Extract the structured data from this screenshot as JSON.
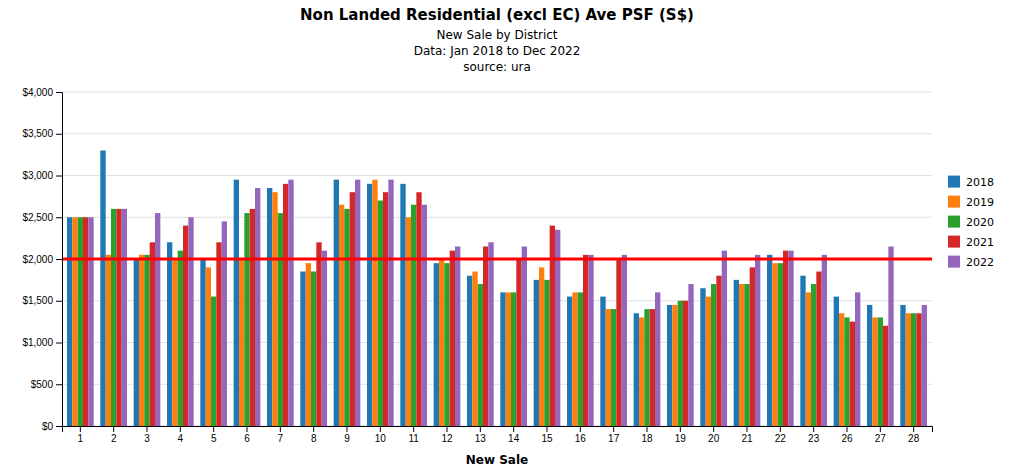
{
  "chart_data": {
    "type": "bar",
    "title": "Non Landed Residential (excl EC) Ave PSF (S$)",
    "subtitle": [
      "New Sale by District",
      "Data: Jan 2018 to Dec 2022",
      "source: ura"
    ],
    "xlabel": "New Sale",
    "categories": [
      1,
      2,
      3,
      4,
      5,
      6,
      7,
      8,
      9,
      10,
      11,
      12,
      13,
      14,
      15,
      16,
      17,
      18,
      19,
      20,
      21,
      22,
      23,
      26,
      27,
      28
    ],
    "series": [
      {
        "name": "2018",
        "values": [
          2500,
          3300,
          2000,
          2200,
          2000,
          2950,
          2850,
          1850,
          2950,
          2900,
          2900,
          1950,
          1800,
          1600,
          1750,
          1550,
          1550,
          1350,
          1450,
          1650,
          1750,
          2050,
          1800,
          1550,
          1450,
          1450
        ]
      },
      {
        "name": "2019",
        "values": [
          2500,
          2050,
          2050,
          2000,
          1900,
          2000,
          2800,
          1950,
          2650,
          2950,
          2500,
          2000,
          1850,
          1600,
          1900,
          1600,
          1400,
          1300,
          1450,
          1550,
          1700,
          1950,
          1600,
          1350,
          1300,
          1350
        ]
      },
      {
        "name": "2020",
        "values": [
          2500,
          2600,
          2050,
          2100,
          1550,
          2550,
          2550,
          1850,
          2600,
          2700,
          2650,
          1950,
          1700,
          1600,
          1750,
          1600,
          1400,
          1400,
          1500,
          1700,
          1700,
          1950,
          1700,
          1300,
          1300,
          1350
        ]
      },
      {
        "name": "2021",
        "values": [
          2500,
          2600,
          2200,
          2400,
          2200,
          2600,
          2900,
          2200,
          2800,
          2800,
          2800,
          2100,
          2150,
          2000,
          2400,
          2050,
          2000,
          1400,
          1500,
          1800,
          1900,
          2100,
          1850,
          1250,
          1200,
          1350
        ]
      },
      {
        "name": "2022",
        "values": [
          2500,
          2600,
          2550,
          2500,
          2450,
          2850,
          2950,
          2100,
          2950,
          2950,
          2650,
          2150,
          2200,
          2150,
          2350,
          2050,
          2050,
          1600,
          1700,
          2100,
          2050,
          2100,
          2050,
          1600,
          2150,
          1450
        ]
      }
    ],
    "reference_line": {
      "y": 2000,
      "color": "#FF0000"
    },
    "ylim": [
      0,
      4000
    ],
    "yticks": [
      {
        "value": 0,
        "label": "$0"
      },
      {
        "value": 500,
        "label": "$500"
      },
      {
        "value": 1000,
        "label": "$1,000"
      },
      {
        "value": 1500,
        "label": "$1,500"
      },
      {
        "value": 2000,
        "label": "$2,000"
      },
      {
        "value": 2500,
        "label": "$2,500"
      },
      {
        "value": 3000,
        "label": "$3,000"
      },
      {
        "value": 3500,
        "label": "$3,500"
      },
      {
        "value": 4000,
        "label": "$4,000"
      }
    ],
    "grid": true,
    "legend": "right"
  }
}
